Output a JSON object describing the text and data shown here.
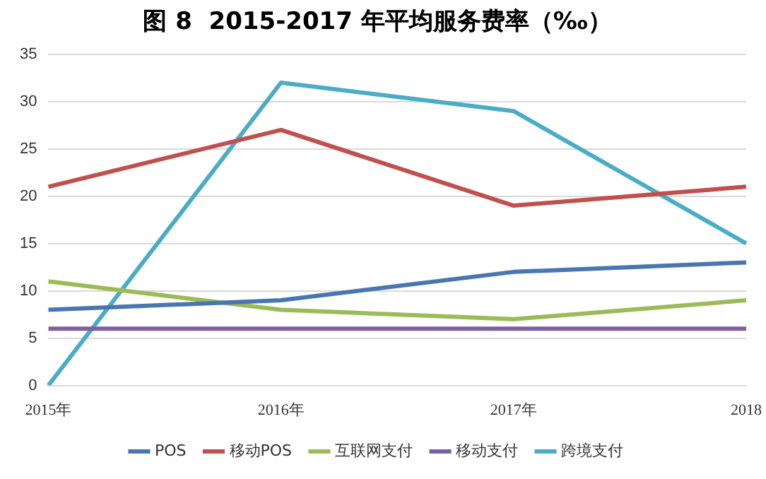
{
  "chart_data": {
    "type": "line",
    "title": "图 8  2015-2017 年平均服务费率（‰）",
    "categories": [
      "2015年",
      "2016年",
      "2017年",
      "2018"
    ],
    "series": [
      {
        "name": "POS",
        "color": "#4a76b0",
        "values": [
          8,
          9,
          12,
          13
        ]
      },
      {
        "name": "移动POS",
        "color": "#c0504d",
        "values": [
          21,
          27,
          19,
          21
        ]
      },
      {
        "name": "互联网支付",
        "color": "#9bbb59",
        "values": [
          11,
          8,
          7,
          9
        ]
      },
      {
        "name": "移动支付",
        "color": "#7f5f9f",
        "values": [
          6,
          6,
          6,
          6
        ]
      },
      {
        "name": "跨境支付",
        "color": "#4bacc6",
        "values": [
          0,
          32,
          29,
          15
        ]
      }
    ],
    "ylim": [
      0,
      35
    ],
    "yticks": [
      0,
      5,
      10,
      15,
      20,
      25,
      30,
      35
    ],
    "grid": "y",
    "legend": "bottom",
    "marker": "none",
    "line_style": "solid"
  }
}
